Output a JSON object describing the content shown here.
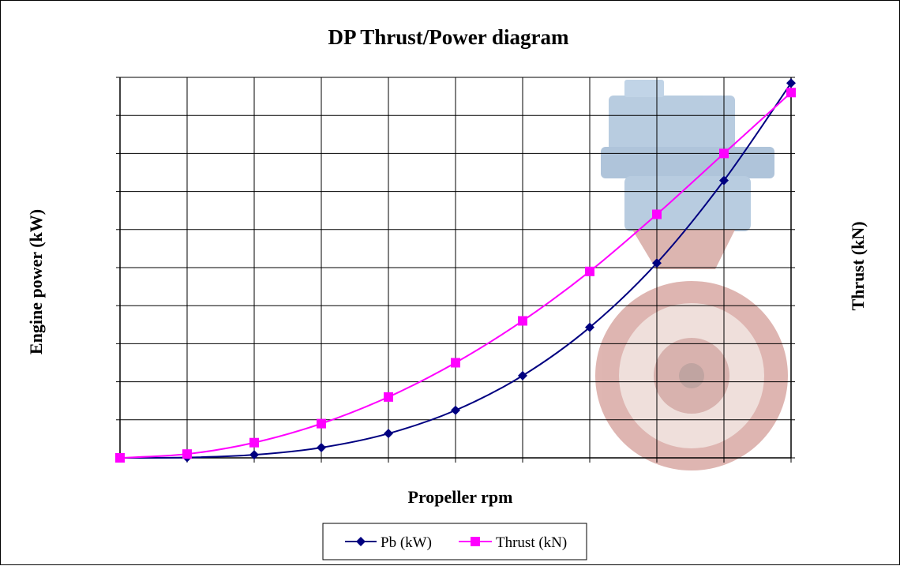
{
  "chart_data": {
    "type": "line",
    "title": "DP Thrust/Power diagram",
    "xlabel": "Propeller rpm",
    "ylabel_left": "Engine power (kW)",
    "ylabel_right": "Thrust (kN)",
    "x": [
      0,
      1,
      2,
      3,
      4,
      5,
      6,
      7,
      8,
      9,
      10
    ],
    "xlim": [
      0,
      10
    ],
    "ylim": [
      0,
      100
    ],
    "grid": true,
    "legend_position": "bottom",
    "series": [
      {
        "name": "Pb (kW)",
        "color": "#000080",
        "marker": "diamond",
        "values": [
          0,
          0.1,
          0.8,
          2.7,
          6.4,
          12.5,
          21.6,
          34.3,
          51.2,
          72.9,
          98.5
        ]
      },
      {
        "name": "Thrust (kN)",
        "color": "#FF00FF",
        "marker": "square",
        "values": [
          0,
          1,
          4,
          9,
          16,
          25,
          36,
          49,
          64,
          80,
          96
        ]
      }
    ]
  }
}
